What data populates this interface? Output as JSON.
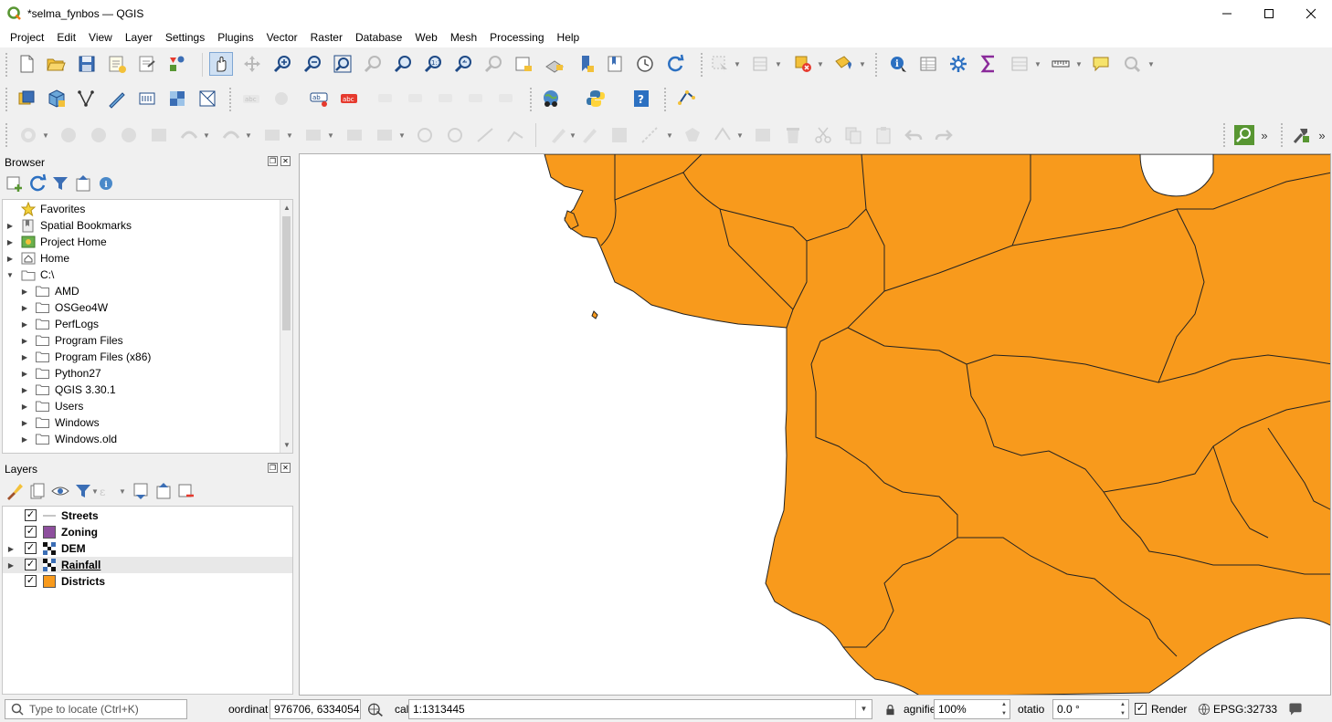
{
  "window": {
    "title": "*selma_fynbos — QGIS",
    "minimize": "─",
    "maximize": "☐",
    "close": "✕"
  },
  "menu": [
    "Project",
    "Edit",
    "View",
    "Layer",
    "Settings",
    "Plugins",
    "Vector",
    "Raster",
    "Database",
    "Web",
    "Mesh",
    "Processing",
    "Help"
  ],
  "browser": {
    "title": "Browser",
    "items": [
      {
        "label": "Favorites",
        "icon": "star-icon"
      },
      {
        "label": "Spatial Bookmarks",
        "icon": "bookmarks-icon"
      },
      {
        "label": "Project Home",
        "icon": "project-home-icon"
      },
      {
        "label": "Home",
        "icon": "home-icon"
      },
      {
        "label": "C:\\",
        "icon": "drive-icon"
      },
      {
        "label": "AMD",
        "icon": "folder-icon"
      },
      {
        "label": "OSGeo4W",
        "icon": "folder-icon"
      },
      {
        "label": "PerfLogs",
        "icon": "folder-icon"
      },
      {
        "label": "Program Files",
        "icon": "folder-icon"
      },
      {
        "label": "Program Files (x86)",
        "icon": "folder-icon"
      },
      {
        "label": "Python27",
        "icon": "folder-icon"
      },
      {
        "label": "QGIS 3.30.1",
        "icon": "folder-icon"
      },
      {
        "label": "Users",
        "icon": "folder-icon"
      },
      {
        "label": "Windows",
        "icon": "folder-icon"
      },
      {
        "label": "Windows.old",
        "icon": "folder-icon"
      }
    ]
  },
  "layers": {
    "title": "Layers",
    "items": [
      {
        "label": "Streets",
        "checked": true,
        "type": "line",
        "color": "#8c8c8c"
      },
      {
        "label": "Zoning",
        "checked": true,
        "type": "polygon",
        "color": "#8e4f9e"
      },
      {
        "label": "DEM",
        "checked": true,
        "type": "raster",
        "color": "#555555"
      },
      {
        "label": "Rainfall",
        "checked": true,
        "type": "raster",
        "color": "#555555"
      },
      {
        "label": "Districts",
        "checked": true,
        "type": "polygon",
        "color": "#f89a1c"
      }
    ]
  },
  "status": {
    "locate_placeholder": "Type to locate (Ctrl+K)",
    "coordinate_label": "oordinat",
    "coordinate_value": "976706, 6334054",
    "scale_label": "cal",
    "scale_value": "1:1313445",
    "magnifier_label": "agnifie",
    "magnifier_value": "100%",
    "rotation_label": "otatio",
    "rotation_value": "0.0 °",
    "render_label": "Render",
    "crs": "EPSG:32733"
  },
  "colors": {
    "districts": "#f89a1c",
    "zoning": "#8e4f9e",
    "streets_area": "#6f9b6b",
    "raster_dark": "#101010"
  }
}
